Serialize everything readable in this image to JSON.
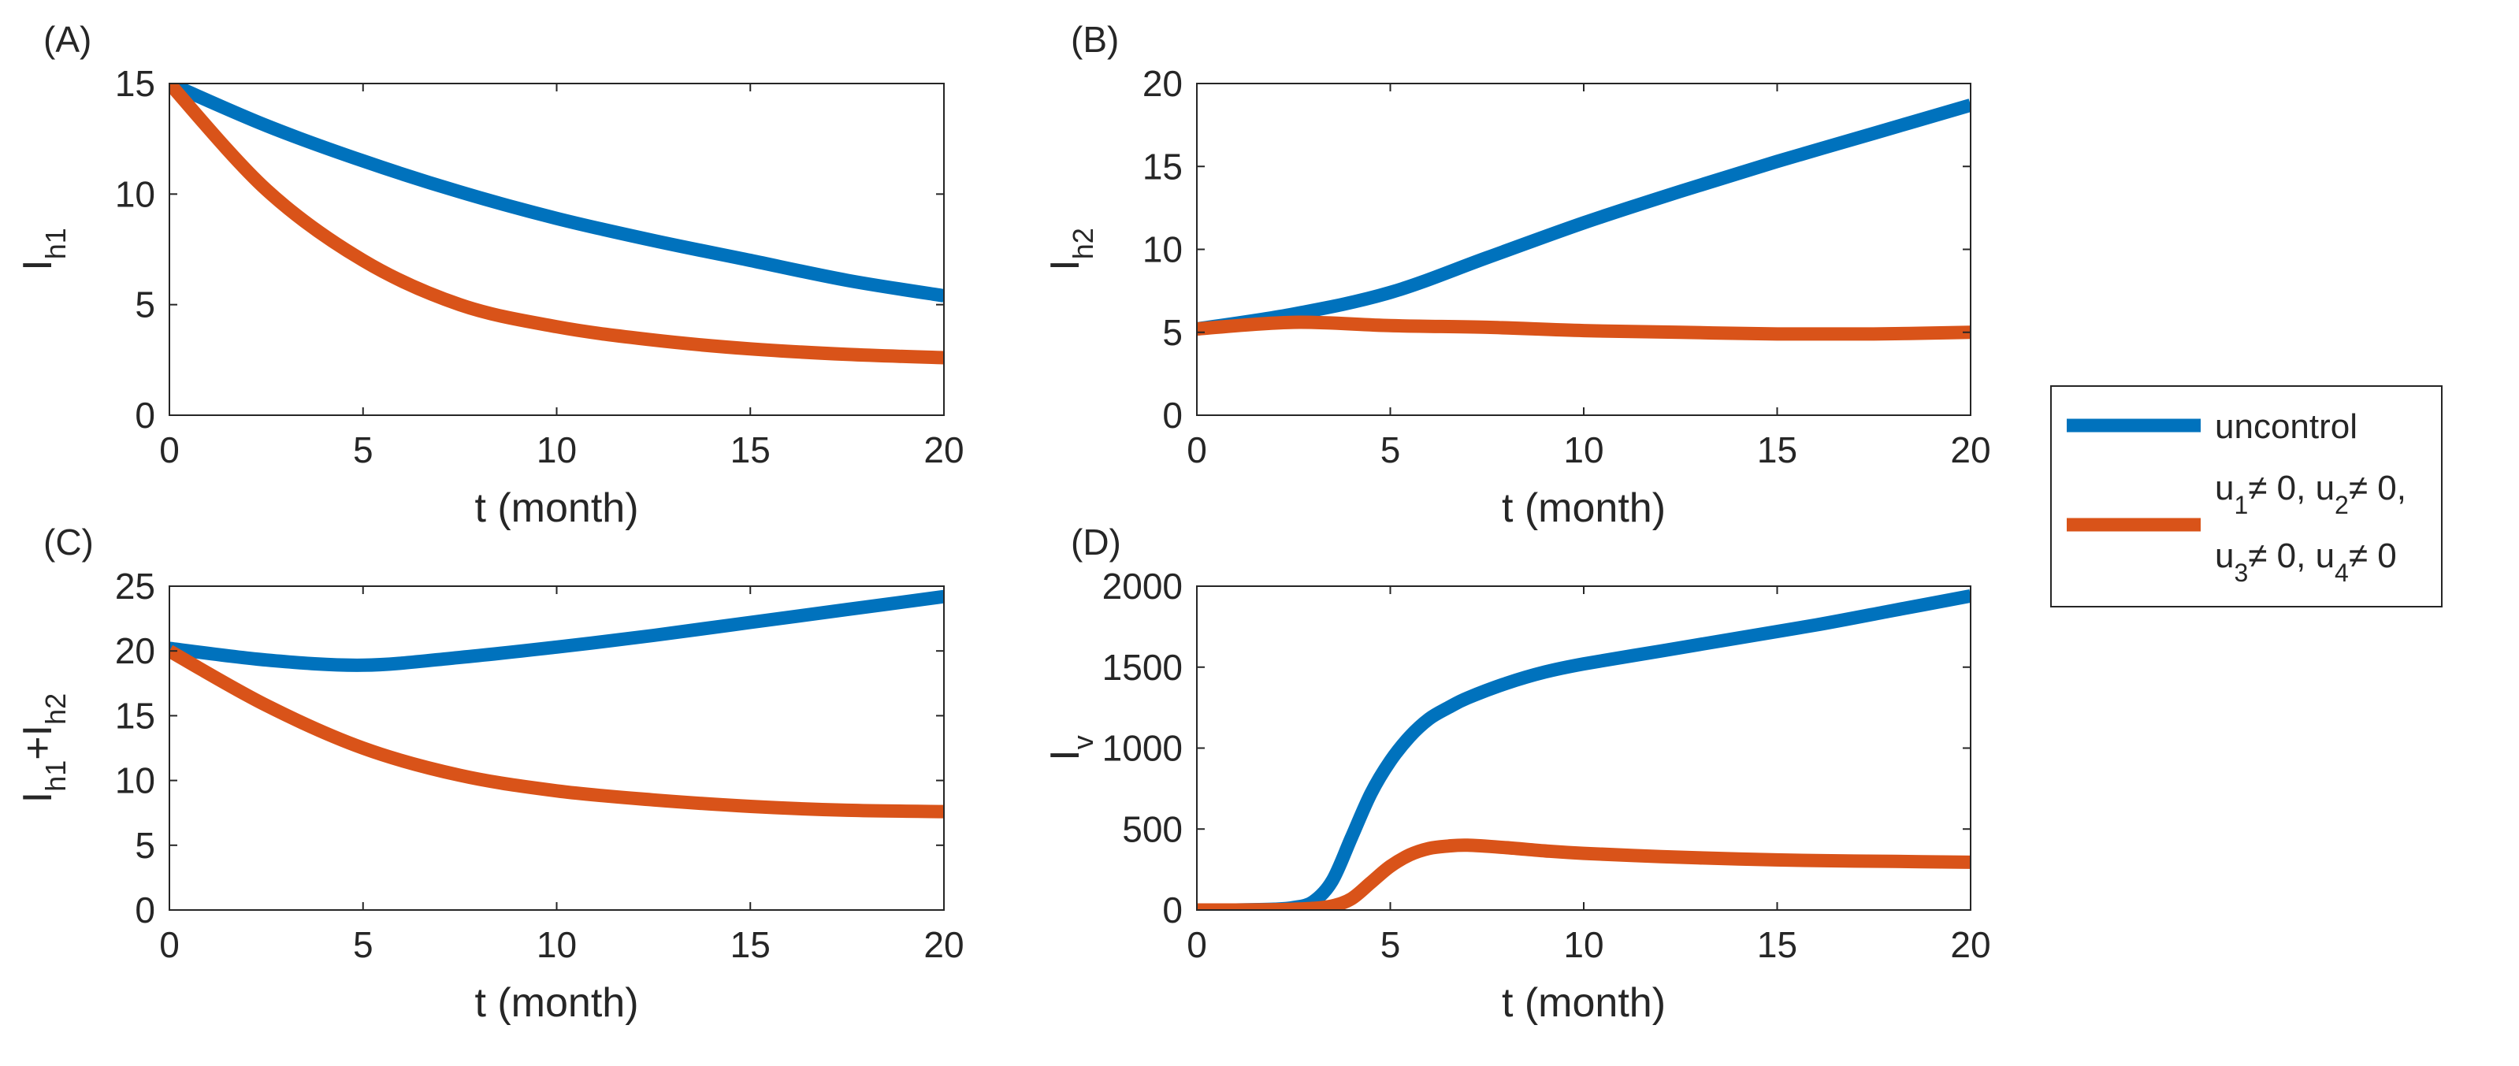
{
  "colors": {
    "uncontrol": "#0072BD",
    "control": "#D95319",
    "axis": "#262626"
  },
  "legend": {
    "entries": [
      {
        "series": "uncontrol",
        "lines": [
          [
            {
              "t": "uncontrol"
            }
          ]
        ]
      },
      {
        "series": "control",
        "lines": [
          [
            {
              "t": "u"
            },
            {
              "t": "1",
              "sub": true
            },
            {
              "t": "≠ 0, u"
            },
            {
              "t": "2",
              "sub": true
            },
            {
              "t": "≠ 0,"
            }
          ],
          [
            {
              "t": "u"
            },
            {
              "t": "3",
              "sub": true
            },
            {
              "t": "≠ 0, u"
            },
            {
              "t": "4",
              "sub": true
            },
            {
              "t": "≠ 0"
            }
          ]
        ]
      }
    ]
  },
  "chart_data": [
    {
      "type": "line",
      "panel": "(A)",
      "xlabel": "t (month)",
      "ylabel": [
        {
          "t": "I"
        },
        {
          "t": "h1",
          "sub": true
        }
      ],
      "xlim": [
        0,
        20
      ],
      "ylim": [
        0,
        15
      ],
      "xticks": [
        0,
        5,
        10,
        15,
        20
      ],
      "yticks": [
        0,
        5,
        10,
        15
      ],
      "x": [
        0,
        2.5,
        5,
        7.5,
        10,
        12.5,
        15,
        17.5,
        20
      ],
      "series": [
        {
          "key": "uncontrol",
          "values": [
            15,
            13.1,
            11.5,
            10.1,
            8.9,
            7.9,
            7.0,
            6.1,
            5.4
          ]
        },
        {
          "key": "control",
          "values": [
            15,
            10.2,
            7.0,
            5.0,
            4.0,
            3.4,
            3.0,
            2.75,
            2.6
          ]
        }
      ]
    },
    {
      "type": "line",
      "panel": "(B)",
      "xlabel": "t (month)",
      "ylabel": [
        {
          "t": "I"
        },
        {
          "t": "h2",
          "sub": true
        }
      ],
      "xlim": [
        0,
        20
      ],
      "ylim": [
        0,
        20
      ],
      "xticks": [
        0,
        5,
        10,
        15,
        20
      ],
      "yticks": [
        0,
        5,
        10,
        15,
        20
      ],
      "x": [
        0,
        2.5,
        5,
        7.5,
        10,
        12.5,
        15,
        17.5,
        20
      ],
      "series": [
        {
          "key": "uncontrol",
          "values": [
            5.2,
            6.1,
            7.4,
            9.5,
            11.6,
            13.5,
            15.3,
            17.0,
            18.7
          ]
        },
        {
          "key": "control",
          "values": [
            5.2,
            5.6,
            5.4,
            5.3,
            5.1,
            5.0,
            4.9,
            4.9,
            5.0
          ]
        }
      ]
    },
    {
      "type": "line",
      "panel": "(C)",
      "xlabel": "t (month)",
      "ylabel": [
        {
          "t": "I"
        },
        {
          "t": "h1",
          "sub": true
        },
        {
          "t": "+I"
        },
        {
          "t": "h2",
          "sub": true
        }
      ],
      "xlim": [
        0,
        20
      ],
      "ylim": [
        0,
        25
      ],
      "xticks": [
        0,
        5,
        10,
        15,
        20
      ],
      "yticks": [
        0,
        5,
        10,
        15,
        20,
        25
      ],
      "x": [
        0,
        2.5,
        5,
        7.5,
        10,
        12.5,
        15,
        17.5,
        20
      ],
      "series": [
        {
          "key": "uncontrol",
          "values": [
            20.2,
            19.3,
            18.9,
            19.5,
            20.3,
            21.2,
            22.2,
            23.2,
            24.2
          ]
        },
        {
          "key": "control",
          "values": [
            20.0,
            15.8,
            12.5,
            10.4,
            9.2,
            8.5,
            8.0,
            7.7,
            7.6
          ]
        }
      ]
    },
    {
      "type": "line",
      "panel": "(D)",
      "xlabel": "t (month)",
      "ylabel": [
        {
          "t": "I"
        },
        {
          "t": "v",
          "sub": true
        }
      ],
      "xlim": [
        0,
        20
      ],
      "ylim": [
        0,
        2000
      ],
      "xticks": [
        0,
        5,
        10,
        15,
        20
      ],
      "yticks": [
        0,
        500,
        1000,
        1500,
        2000
      ],
      "x": [
        0,
        1,
        2,
        2.5,
        3,
        3.5,
        4,
        4.5,
        5,
        5.5,
        6,
        6.5,
        7,
        8,
        9,
        10,
        12,
        14,
        16,
        18,
        20
      ],
      "series": [
        {
          "key": "uncontrol",
          "values": [
            0,
            0,
            5,
            15,
            50,
            180,
            450,
            720,
            920,
            1070,
            1180,
            1250,
            1310,
            1400,
            1470,
            1520,
            1600,
            1680,
            1760,
            1850,
            1940
          ]
        },
        {
          "key": "control",
          "values": [
            0,
            0,
            2,
            5,
            10,
            25,
            70,
            170,
            270,
            340,
            380,
            395,
            400,
            385,
            365,
            350,
            330,
            315,
            305,
            300,
            295
          ]
        }
      ]
    }
  ]
}
